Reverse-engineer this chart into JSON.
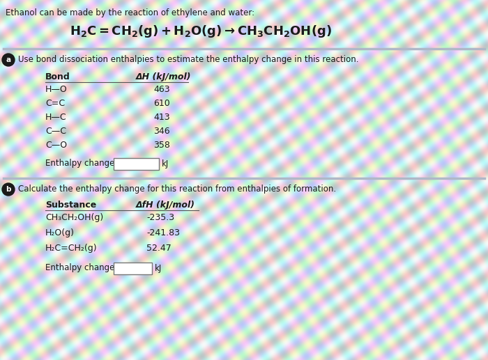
{
  "title_text": "Ethanol can be made by the reaction of ethylene and water:",
  "section_a_label": "a",
  "section_a_text": "Use bond dissociation enthalpies to estimate the enthalpy change in this reaction.",
  "table_a_col1_header": "Bond",
  "table_a_col2_header": "ΔH (kJ/mol)",
  "table_a_bonds": [
    "H—O",
    "C=C",
    "H—C",
    "C—C",
    "C—O"
  ],
  "table_a_values": [
    "463",
    "610",
    "413",
    "346",
    "358"
  ],
  "enthalpy_label_a": "Enthalpy change =",
  "enthalpy_unit_a": "kJ",
  "section_b_label": "b",
  "section_b_text": "Calculate the enthalpy change for this reaction from enthalpies of formation.",
  "table_b_col1_header": "Substance",
  "table_b_col2_header": "ΔfH (kJ/mol)",
  "table_b_substances": [
    "CH₃CH₂OH(g)",
    "H₂O(g)",
    "H₂C=CH₂(g)"
  ],
  "table_b_values": [
    "-235.3",
    "-241.83",
    "52.47"
  ],
  "enthalpy_label_b": "Enthalpy change =",
  "enthalpy_unit_b": "kJ",
  "text_color": "#1a1a1a",
  "header_color": "#1a1a1a",
  "circle_color": "#1a1a1a",
  "divider_color": "#aaaaaa",
  "box_edge_color": "#555555",
  "reaction_color": "#1a1a1a",
  "bg_base": "#e8e8e8"
}
